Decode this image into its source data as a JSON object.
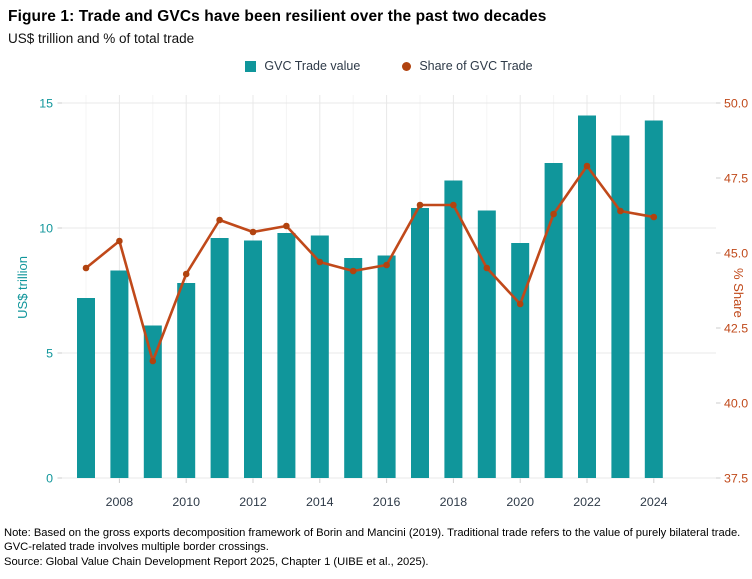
{
  "figure": {
    "title": "Figure 1: Trade and GVCs have been resilient over the past two decades",
    "subtitle": "US$ trillion and % of total trade"
  },
  "legend": {
    "bar_label": "GVC Trade value",
    "line_label": "Share of GVC Trade"
  },
  "chart_data": {
    "type": "bar+line",
    "title": "Figure 1: Trade and GVCs have been resilient over the past two decades",
    "subtitle": "US$ trillion and % of total trade",
    "x": [
      2007,
      2008,
      2009,
      2010,
      2011,
      2012,
      2013,
      2014,
      2015,
      2016,
      2017,
      2018,
      2019,
      2020,
      2021,
      2022,
      2023,
      2024
    ],
    "series": [
      {
        "name": "GVC Trade value",
        "type": "bar",
        "axis": "left",
        "color": "#10969b",
        "values": [
          7.2,
          8.3,
          6.1,
          7.8,
          9.6,
          9.5,
          9.8,
          9.7,
          8.8,
          8.9,
          10.8,
          11.9,
          10.7,
          9.4,
          12.6,
          14.5,
          13.7,
          14.3
        ]
      },
      {
        "name": "Share of GVC Trade",
        "type": "line",
        "axis": "right",
        "color": "#c0491a",
        "point_color": "#b1430f",
        "values": [
          44.5,
          45.4,
          41.4,
          44.3,
          46.1,
          45.7,
          45.9,
          44.7,
          44.4,
          44.6,
          46.6,
          46.6,
          44.5,
          43.3,
          46.3,
          47.9,
          46.4,
          46.2
        ]
      }
    ],
    "left_axis": {
      "label": "US$ trillion",
      "ticks": [
        0,
        5,
        10,
        15
      ],
      "range": [
        0,
        15
      ],
      "color": "#10969b"
    },
    "right_axis": {
      "label": "% Share",
      "tick_labels": [
        "37.5",
        "40.0",
        "42.5",
        "45.0",
        "47.5",
        "50.0"
      ],
      "ticks": [
        37.5,
        40.0,
        42.5,
        45.0,
        47.5,
        50.0
      ],
      "range": [
        37.5,
        50.0
      ],
      "color": "#c0491a"
    },
    "x_axis": {
      "tick_labels": [
        "2008",
        "2010",
        "2012",
        "2014",
        "2016",
        "2018",
        "2020",
        "2022",
        "2024"
      ],
      "color": "#2e3a48"
    },
    "grid": {
      "horizontal_major": [
        0,
        5,
        10,
        15
      ],
      "vertical_major_years": [
        2008,
        2010,
        2012,
        2014,
        2016,
        2018,
        2020,
        2022,
        2024
      ],
      "vertical_minor_years": [
        2007,
        2009,
        2011,
        2013,
        2015,
        2017,
        2019,
        2021,
        2023
      ],
      "major_color": "#e8e8e8",
      "minor_color": "#f4f4f4"
    },
    "legend_position": "top-center"
  },
  "notes": {
    "note": "Note: Based on the gross exports decomposition framework of Borin and Mancini (2019). Traditional trade refers to the value of purely bilateral trade. GVC-related trade involves multiple border crossings.",
    "source": "Source: Global Value Chain Development Report 2025, Chapter 1 (UIBE et al., 2025)."
  }
}
